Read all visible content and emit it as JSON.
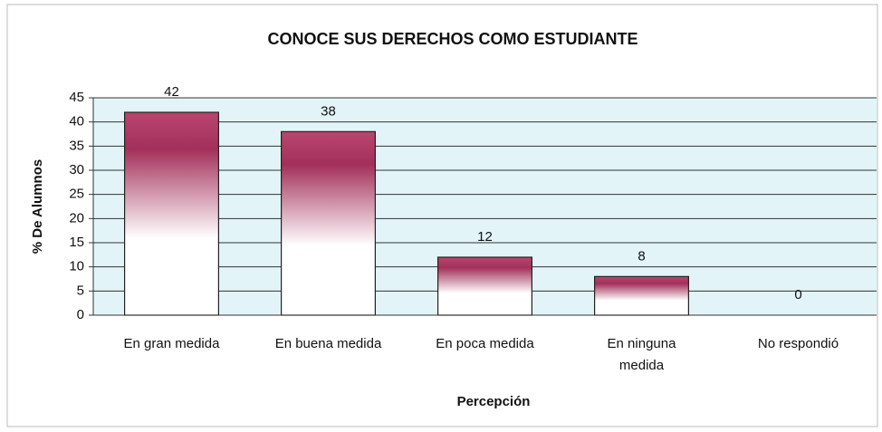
{
  "chart_data": {
    "type": "bar",
    "title": "CONOCE SUS DERECHOS COMO ESTUDIANTE",
    "x_label": "Percepción",
    "y_label": "% De Alumnos",
    "categories": [
      "En gran medida",
      "En buena medida",
      "En poca medida",
      "En ninguna medida",
      "No respondió"
    ],
    "values": [
      42,
      38,
      12,
      8,
      0
    ],
    "color": "#a3305a",
    "plot_background": "#e2f4f8",
    "ylim": [
      0,
      45
    ],
    "yticks": [
      0,
      5,
      10,
      15,
      20,
      25,
      30,
      35,
      40,
      45
    ],
    "grid": true
  }
}
